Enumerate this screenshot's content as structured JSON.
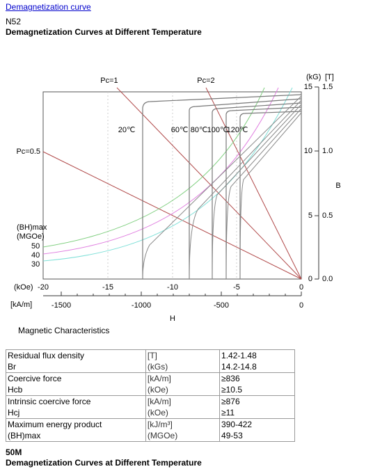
{
  "link": "Demagnetization curve",
  "grade": "N52",
  "heading": "Demagnetization Curves at Different Temperature",
  "figure": {
    "pc_labels": [
      "Pc=1",
      "Pc=2",
      "Pc=0.5"
    ],
    "temps": [
      "20℃",
      "60℃",
      "80℃",
      "100℃",
      "120℃"
    ],
    "bh_label": [
      "(BH)max",
      "(MGOe)"
    ],
    "bh_values": [
      "50",
      "40",
      "30"
    ],
    "koe_unit": "(kOe)",
    "koe_ticks": [
      "-20",
      "-15",
      "-10",
      "-5",
      "0"
    ],
    "kam_unit": "[kA/m]",
    "kam_ticks": [
      "-1500",
      "-1000",
      "-500",
      "0"
    ],
    "x_title": "H",
    "kg_unit": "(kG)",
    "t_unit": "[T]",
    "kg_ticks": [
      "15",
      "10",
      "5",
      "0"
    ],
    "t_ticks": [
      "1.5",
      "1.0",
      "0.5",
      "0.0"
    ],
    "y_title": "B"
  },
  "section": "Magnetic Characteristics",
  "table": {
    "rows": [
      [
        "Residual flux density",
        "[T]",
        "1.42-1.48"
      ],
      [
        "Br",
        "(kGs)",
        "14.2-14.8"
      ],
      [
        "Coercive force",
        "[kA/m]",
        "≥836"
      ],
      [
        "Hcb",
        "(kOe)",
        "≥10.5"
      ],
      [
        "Intrinsic coercive force",
        "[kA/m]",
        "≥876"
      ],
      [
        "Hcj",
        "(kOe)",
        "≥11"
      ],
      [
        "Maximum energy product",
        "[kJ/m³]",
        "390-422"
      ],
      [
        "(BH)max",
        "(MGOe)",
        "49-53"
      ]
    ]
  },
  "footer_grade": "50M",
  "footer_heading": "Demagnetization Curves at Different Temperature"
}
